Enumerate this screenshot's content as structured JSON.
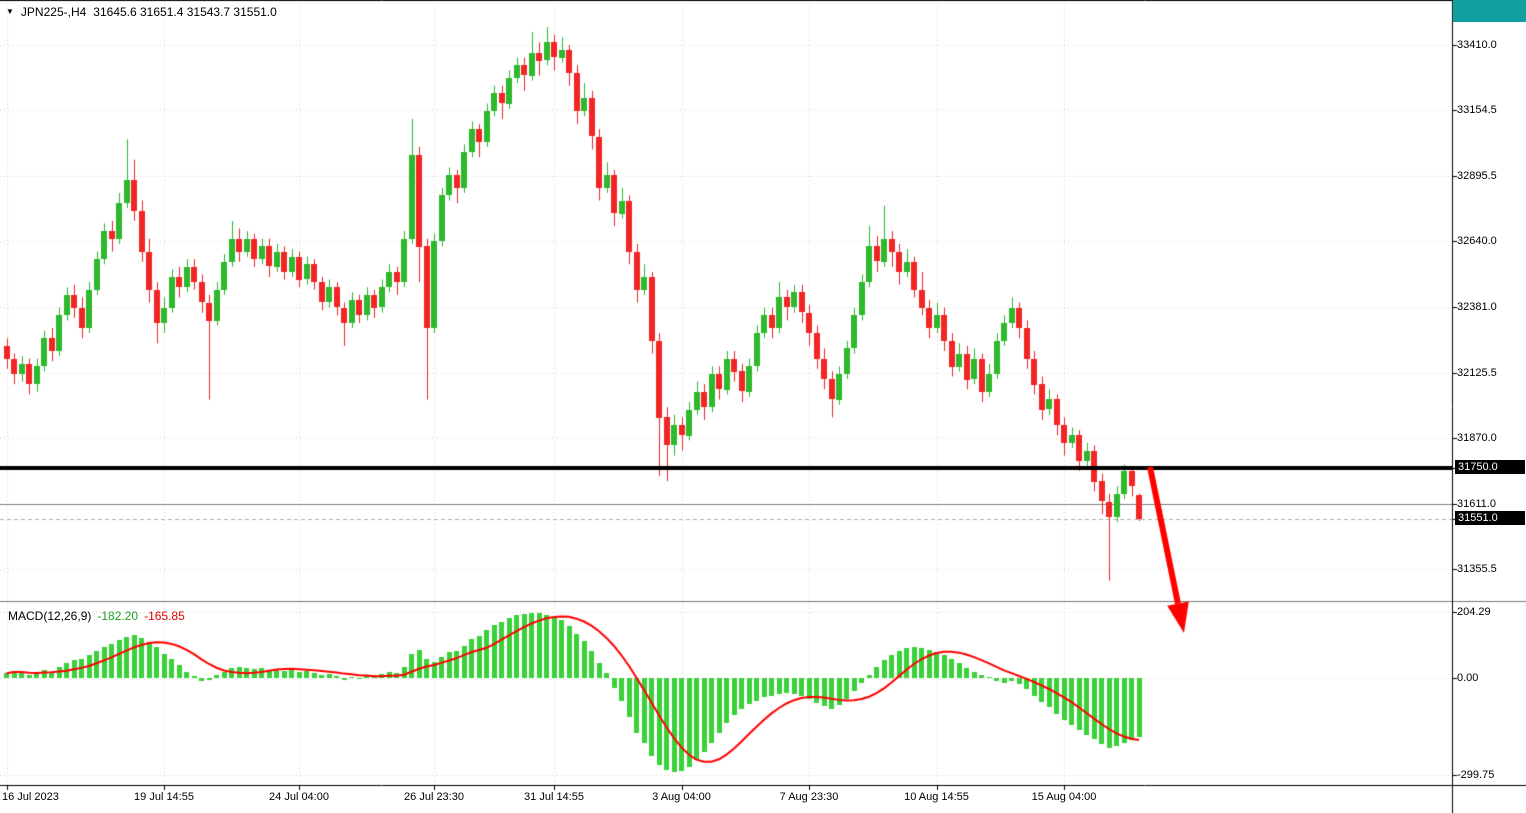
{
  "window": {
    "icons": {
      "collapse": "▼"
    }
  },
  "colors": {
    "bull": "#2db82d",
    "bear": "#f22525",
    "histogram": "#3ad13a",
    "signal": "#ff0000",
    "level_main": "#000000",
    "level_thin": "#808080",
    "bid_line": "#b0b0b0",
    "arrow": "#ff0000",
    "badge_bg": "#000000",
    "badge_text": "#ffffff",
    "grid": "#d6d6d6",
    "corner": "#11a0a0"
  },
  "chart_data": [
    {
      "type": "candlestick",
      "title": "JPN225-,H4",
      "ohlc_text": "31645.6 31651.4 31543.7 31551.0",
      "y_axis": {
        "ticks": [
          "33410.0",
          "33154.5",
          "32895.5",
          "32640.0",
          "32381.0",
          "32125.5",
          "31870.0",
          "31611.0",
          "31355.5"
        ],
        "range": [
          31234,
          33586
        ]
      },
      "badges": [
        {
          "label": "31750.0",
          "value": 31750,
          "name": "level-price-badge"
        },
        {
          "label": "31551.0",
          "value": 31551,
          "name": "current-price-badge"
        }
      ],
      "levels": [
        {
          "value": 31750,
          "width": 4,
          "color": "#000000",
          "dash": []
        },
        {
          "value": 31611,
          "width": 1,
          "color": "#808080",
          "dash": []
        },
        {
          "value": 31551,
          "width": 1,
          "color": "#b0b0b0",
          "dash": [
            4,
            3
          ]
        }
      ],
      "x_axis": {
        "labels": [
          {
            "label": "16 Jul 2023",
            "index": 0
          },
          {
            "label": "19 Jul 14:55",
            "index": 21
          },
          {
            "label": "24 Jul 04:00",
            "index": 39
          },
          {
            "label": "26 Jul 23:30",
            "index": 57
          },
          {
            "label": "31 Jul 14:55",
            "index": 73
          },
          {
            "label": "3 Aug 04:00",
            "index": 90
          },
          {
            "label": "7 Aug 23:30",
            "index": 107
          },
          {
            "label": "10 Aug 14:55",
            "index": 124
          },
          {
            "label": "15 Aug 04:00",
            "index": 141
          }
        ]
      },
      "annotations": [
        {
          "type": "arrow",
          "direction": "down-right",
          "color": "#ff0000"
        }
      ],
      "candles": [
        [
          32230,
          32260,
          32140,
          32180
        ],
        [
          32180,
          32200,
          32080,
          32120
        ],
        [
          32120,
          32190,
          32090,
          32160
        ],
        [
          32160,
          32180,
          32040,
          32080
        ],
        [
          32080,
          32180,
          32050,
          32150
        ],
        [
          32150,
          32290,
          32130,
          32260
        ],
        [
          32260,
          32300,
          32170,
          32210
        ],
        [
          32210,
          32380,
          32190,
          32350
        ],
        [
          32350,
          32460,
          32330,
          32430
        ],
        [
          32430,
          32470,
          32340,
          32380
        ],
        [
          32380,
          32420,
          32260,
          32300
        ],
        [
          32300,
          32480,
          32280,
          32450
        ],
        [
          32450,
          32600,
          32430,
          32570
        ],
        [
          32570,
          32710,
          32550,
          32680
        ],
        [
          32680,
          32720,
          32600,
          32650
        ],
        [
          32650,
          32830,
          32630,
          32790
        ],
        [
          32790,
          33040,
          32770,
          32880
        ],
        [
          32880,
          32960,
          32720,
          32760
        ],
        [
          32760,
          32800,
          32560,
          32600
        ],
        [
          32600,
          32650,
          32400,
          32450
        ],
        [
          32450,
          32480,
          32240,
          32320
        ],
        [
          32320,
          32420,
          32280,
          32380
        ],
        [
          32380,
          32530,
          32360,
          32500
        ],
        [
          32500,
          32540,
          32420,
          32460
        ],
        [
          32460,
          32570,
          32440,
          32540
        ],
        [
          32540,
          32570,
          32450,
          32480
        ],
        [
          32480,
          32510,
          32360,
          32400
        ],
        [
          32400,
          32430,
          32020,
          32330
        ],
        [
          32330,
          32480,
          32310,
          32450
        ],
        [
          32450,
          32590,
          32430,
          32560
        ],
        [
          32560,
          32720,
          32540,
          32650
        ],
        [
          32650,
          32690,
          32560,
          32600
        ],
        [
          32600,
          32680,
          32580,
          32650
        ],
        [
          32650,
          32670,
          32540,
          32570
        ],
        [
          32570,
          32650,
          32550,
          32620
        ],
        [
          32620,
          32650,
          32500,
          32540
        ],
        [
          32540,
          32630,
          32520,
          32600
        ],
        [
          32600,
          32620,
          32490,
          32520
        ],
        [
          32520,
          32610,
          32500,
          32580
        ],
        [
          32580,
          32600,
          32460,
          32490
        ],
        [
          32490,
          32580,
          32470,
          32550
        ],
        [
          32550,
          32570,
          32450,
          32480
        ],
        [
          32480,
          32500,
          32370,
          32400
        ],
        [
          32400,
          32490,
          32380,
          32460
        ],
        [
          32460,
          32480,
          32350,
          32380
        ],
        [
          32380,
          32400,
          32230,
          32320
        ],
        [
          32320,
          32440,
          32300,
          32410
        ],
        [
          32410,
          32430,
          32320,
          32350
        ],
        [
          32350,
          32460,
          32330,
          32430
        ],
        [
          32430,
          32450,
          32340,
          32380
        ],
        [
          32380,
          32490,
          32360,
          32460
        ],
        [
          32460,
          32550,
          32440,
          32520
        ],
        [
          32520,
          32540,
          32430,
          32480
        ],
        [
          32480,
          32680,
          32460,
          32650
        ],
        [
          32650,
          33120,
          32630,
          32980
        ],
        [
          32980,
          33010,
          32480,
          32620
        ],
        [
          32620,
          32650,
          32020,
          32300
        ],
        [
          32300,
          32670,
          32280,
          32640
        ],
        [
          32640,
          32850,
          32620,
          32820
        ],
        [
          32820,
          32930,
          32800,
          32900
        ],
        [
          32900,
          32920,
          32790,
          32850
        ],
        [
          32850,
          33020,
          32830,
          32990
        ],
        [
          32990,
          33110,
          32970,
          33080
        ],
        [
          33080,
          33100,
          32970,
          33030
        ],
        [
          33030,
          33180,
          33010,
          33150
        ],
        [
          33150,
          33250,
          33130,
          33220
        ],
        [
          33220,
          33250,
          33120,
          33180
        ],
        [
          33180,
          33310,
          33160,
          33280
        ],
        [
          33280,
          33360,
          33260,
          33330
        ],
        [
          33330,
          33360,
          33230,
          33290
        ],
        [
          33290,
          33460,
          33270,
          33380
        ],
        [
          33380,
          33420,
          33290,
          33350
        ],
        [
          33350,
          33480,
          33330,
          33420
        ],
        [
          33420,
          33450,
          33310,
          33360
        ],
        [
          33360,
          33440,
          33340,
          33390
        ],
        [
          33390,
          33410,
          33250,
          33300
        ],
        [
          33300,
          33330,
          33100,
          33150
        ],
        [
          33150,
          33260,
          33130,
          33200
        ],
        [
          33200,
          33230,
          33000,
          33050
        ],
        [
          33050,
          33080,
          32800,
          32850
        ],
        [
          32850,
          32950,
          32830,
          32900
        ],
        [
          32900,
          32920,
          32700,
          32750
        ],
        [
          32750,
          32850,
          32730,
          32800
        ],
        [
          32800,
          32820,
          32550,
          32600
        ],
        [
          32600,
          32630,
          32400,
          32450
        ],
        [
          32450,
          32550,
          32430,
          32500
        ],
        [
          32500,
          32520,
          32200,
          32250
        ],
        [
          32250,
          32280,
          31720,
          31950
        ],
        [
          31950,
          31990,
          31700,
          31840
        ],
        [
          31840,
          31960,
          31800,
          31920
        ],
        [
          31920,
          31950,
          31820,
          31880
        ],
        [
          31880,
          32010,
          31860,
          31980
        ],
        [
          31980,
          32090,
          31960,
          32050
        ],
        [
          32050,
          32080,
          31940,
          31990
        ],
        [
          31990,
          32150,
          31970,
          32120
        ],
        [
          32120,
          32150,
          32020,
          32060
        ],
        [
          32060,
          32210,
          32040,
          32180
        ],
        [
          32180,
          32210,
          32090,
          32130
        ],
        [
          32130,
          32160,
          32010,
          32050
        ],
        [
          32050,
          32180,
          32030,
          32150
        ],
        [
          32150,
          32310,
          32130,
          32280
        ],
        [
          32280,
          32380,
          32260,
          32350
        ],
        [
          32350,
          32380,
          32260,
          32300
        ],
        [
          32300,
          32480,
          32280,
          32420
        ],
        [
          32420,
          32450,
          32330,
          32380
        ],
        [
          32380,
          32470,
          32360,
          32440
        ],
        [
          32440,
          32470,
          32320,
          32360
        ],
        [
          32360,
          32390,
          32230,
          32280
        ],
        [
          32280,
          32310,
          32140,
          32180
        ],
        [
          32180,
          32220,
          32060,
          32100
        ],
        [
          32100,
          32130,
          31950,
          32020
        ],
        [
          32020,
          32150,
          32000,
          32120
        ],
        [
          32120,
          32250,
          32100,
          32220
        ],
        [
          32220,
          32380,
          32200,
          32350
        ],
        [
          32350,
          32510,
          32330,
          32480
        ],
        [
          32480,
          32700,
          32460,
          32620
        ],
        [
          32620,
          32660,
          32520,
          32560
        ],
        [
          32560,
          32780,
          32540,
          32650
        ],
        [
          32650,
          32680,
          32540,
          32600
        ],
        [
          32600,
          32630,
          32470,
          32520
        ],
        [
          32520,
          32610,
          32500,
          32560
        ],
        [
          32560,
          32580,
          32420,
          32450
        ],
        [
          32450,
          32520,
          32350,
          32380
        ],
        [
          32380,
          32410,
          32260,
          32300
        ],
        [
          32300,
          32400,
          32280,
          32350
        ],
        [
          32350,
          32380,
          32210,
          32250
        ],
        [
          32250,
          32280,
          32110,
          32150
        ],
        [
          32150,
          32240,
          32130,
          32200
        ],
        [
          32200,
          32230,
          32060,
          32100
        ],
        [
          32100,
          32220,
          32080,
          32180
        ],
        [
          32180,
          32200,
          32010,
          32050
        ],
        [
          32050,
          32160,
          32030,
          32120
        ],
        [
          32120,
          32280,
          32100,
          32250
        ],
        [
          32250,
          32350,
          32230,
          32320
        ],
        [
          32320,
          32420,
          32300,
          32380
        ],
        [
          32380,
          32400,
          32260,
          32300
        ],
        [
          32300,
          32330,
          32140,
          32180
        ],
        [
          32180,
          32210,
          32040,
          32080
        ],
        [
          32080,
          32110,
          31940,
          31980
        ],
        [
          31980,
          32060,
          31960,
          32020
        ],
        [
          32020,
          32040,
          31880,
          31920
        ],
        [
          31920,
          31950,
          31800,
          31850
        ],
        [
          31850,
          31910,
          31830,
          31880
        ],
        [
          31880,
          31900,
          31740,
          31780
        ],
        [
          31780,
          31850,
          31760,
          31820
        ],
        [
          31820,
          31840,
          31660,
          31700
        ],
        [
          31700,
          31730,
          31570,
          31620
        ],
        [
          31620,
          31650,
          31310,
          31560
        ],
        [
          31560,
          31680,
          31540,
          31650
        ],
        [
          31650,
          31765,
          31630,
          31740
        ],
        [
          31740,
          31750,
          31640,
          31680
        ],
        [
          31645.6,
          31651.4,
          31543.7,
          31551.0
        ]
      ]
    },
    {
      "type": "bar",
      "name": "MACD(12,26,9)",
      "value_main": "-182.20",
      "value_signal": "-165.85",
      "signal_period": 9,
      "y_axis": {
        "ticks": [
          "204.29",
          "0.00",
          "-299.75"
        ],
        "range": [
          -331,
          232
        ]
      },
      "histogram": [
        15,
        22,
        18,
        10,
        14,
        25,
        20,
        35,
        45,
        55,
        60,
        72,
        85,
        95,
        105,
        118,
        128,
        133,
        125,
        112,
        95,
        75,
        58,
        40,
        20,
        5,
        -10,
        -5,
        8,
        20,
        32,
        35,
        30,
        28,
        30,
        25,
        28,
        22,
        25,
        18,
        22,
        15,
        8,
        12,
        5,
        -5,
        3,
        0,
        8,
        5,
        12,
        20,
        15,
        35,
        75,
        88,
        60,
        50,
        65,
        80,
        85,
        100,
        120,
        130,
        150,
        165,
        172,
        185,
        195,
        198,
        202,
        200,
        196,
        188,
        178,
        160,
        135,
        115,
        85,
        45,
        15,
        -30,
        -70,
        -120,
        -170,
        -200,
        -240,
        -270,
        -285,
        -290,
        -288,
        -275,
        -255,
        -230,
        -200,
        -170,
        -140,
        -115,
        -95,
        -80,
        -70,
        -60,
        -55,
        -50,
        -45,
        -48,
        -55,
        -65,
        -78,
        -88,
        -95,
        -85,
        -65,
        -40,
        -15,
        10,
        35,
        55,
        72,
        85,
        92,
        95,
        93,
        88,
        80,
        70,
        58,
        45,
        32,
        20,
        10,
        2,
        -8,
        -15,
        -10,
        -20,
        -35,
        -55,
        -75,
        -90,
        -110,
        -130,
        -145,
        -160,
        -175,
        -190,
        -205,
        -215,
        -210,
        -200,
        -192,
        -182.2
      ]
    }
  ]
}
